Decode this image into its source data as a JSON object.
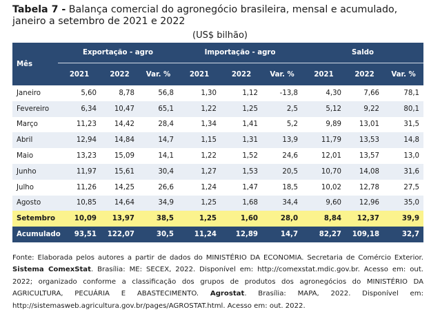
{
  "title": {
    "prefix": "Tabela 7 -",
    "text": " Balança comercial do agronegócio brasileira, mensal e acumulado, janeiro a setembro de 2021 e 2022"
  },
  "unit": "(US$ bilhão)",
  "table": {
    "col_mes": "Mês",
    "groups": [
      "Exportação - agro",
      "Importação - agro",
      "Saldo"
    ],
    "subheaders": [
      "2021",
      "2022",
      "Var. %",
      "2021",
      "2022",
      "Var. %",
      "2021",
      "2022",
      "Var. %"
    ],
    "rows": [
      {
        "mes": "Janeiro",
        "v": [
          "5,60",
          "8,78",
          "56,8",
          "1,30",
          "1,12",
          "-13,8",
          "4,30",
          "7,66",
          "78,1"
        ]
      },
      {
        "mes": "Fevereiro",
        "v": [
          "6,34",
          "10,47",
          "65,1",
          "1,22",
          "1,25",
          "2,5",
          "5,12",
          "9,22",
          "80,1"
        ]
      },
      {
        "mes": "Março",
        "v": [
          "11,23",
          "14,42",
          "28,4",
          "1,34",
          "1,41",
          "5,2",
          "9,89",
          "13,01",
          "31,5"
        ]
      },
      {
        "mes": "Abril",
        "v": [
          "12,94",
          "14,84",
          "14,7",
          "1,15",
          "1,31",
          "13,9",
          "11,79",
          "13,53",
          "14,8"
        ]
      },
      {
        "mes": "Maio",
        "v": [
          "13,23",
          "15,09",
          "14,1",
          "1,22",
          "1,52",
          "24,6",
          "12,01",
          "13,57",
          "13,0"
        ]
      },
      {
        "mes": "Junho",
        "v": [
          "11,97",
          "15,61",
          "30,4",
          "1,27",
          "1,53",
          "20,5",
          "10,70",
          "14,08",
          "31,6"
        ]
      },
      {
        "mes": "Julho",
        "v": [
          "11,26",
          "14,25",
          "26,6",
          "1,24",
          "1,47",
          "18,5",
          "10,02",
          "12,78",
          "27,5"
        ]
      },
      {
        "mes": "Agosto",
        "v": [
          "10,85",
          "14,64",
          "34,9",
          "1,25",
          "1,68",
          "34,4",
          "9,60",
          "12,96",
          "35,0"
        ]
      }
    ],
    "setembro": {
      "mes": "Setembro",
      "v": [
        "10,09",
        "13,97",
        "38,5",
        "1,25",
        "1,60",
        "28,0",
        "8,84",
        "12,37",
        "39,9"
      ]
    },
    "acumulado": {
      "mes": "Acumulado",
      "v": [
        "93,51",
        "122,07",
        "30,5",
        "11,24",
        "12,89",
        "14,7",
        "82,27",
        "109,18",
        "32,7"
      ]
    }
  },
  "source": {
    "part1": "Fonte: Elaborada pelos autores a partir de dados do MINISTÉRIO DA ECONOMIA. Secretaria de Comércio Exterior. ",
    "bold1": "Sistema ComexStat",
    "part2": ". Brasília: ME: SECEX, 2022. Disponível em: http://comexstat.mdic.gov.br. Acesso em: out. 2022; organizado conforme a classificação dos grupos de produtos dos agronegócios do MINISTÉRIO DA AGRICULTURA, PECUÁRIA E ABASTECIMENTO. ",
    "bold2": "Agrostat",
    "part3": ". Brasília: MAPA, 2022. Disponível em: http://sistemasweb.agricultura.gov.br/pages/AGROSTAT.html. Acesso em: out. 2022."
  }
}
